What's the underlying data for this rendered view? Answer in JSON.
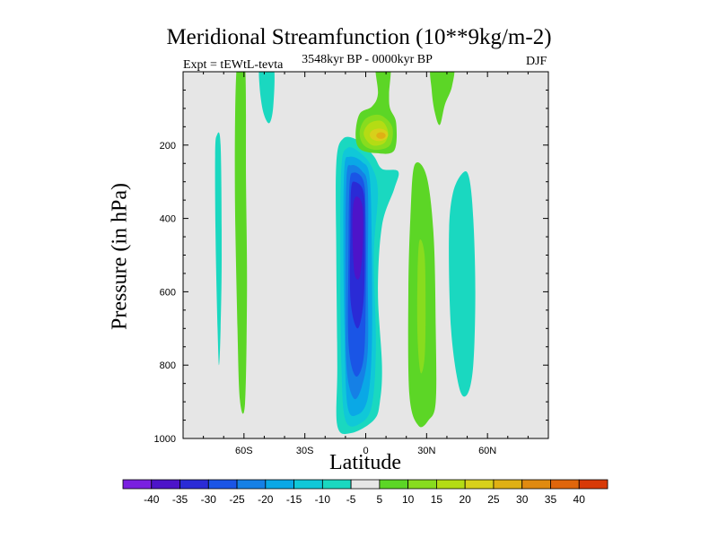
{
  "chart_data": {
    "type": "contour",
    "title": "Meridional Streamfunction (10**9kg/m-2)",
    "left_annotation": "Expt = tEWtL-tevta",
    "center_annotation": "3548kyr BP - 0000kyr BP",
    "right_annotation": "DJF",
    "xlabel": "Latitude",
    "ylabel": "Pressure (in hPa)",
    "xlim": [
      -90,
      90
    ],
    "ylim": [
      1000,
      0
    ],
    "x_ticks": [
      {
        "value": -60,
        "label": "60S"
      },
      {
        "value": -30,
        "label": "30S"
      },
      {
        "value": 0,
        "label": "0"
      },
      {
        "value": 30,
        "label": "30N"
      },
      {
        "value": 60,
        "label": "60N"
      }
    ],
    "y_ticks": [
      {
        "value": 200,
        "label": "200"
      },
      {
        "value": 400,
        "label": "400"
      },
      {
        "value": 600,
        "label": "600"
      },
      {
        "value": 800,
        "label": "800"
      },
      {
        "value": 1000,
        "label": "1000"
      }
    ],
    "background_color": "#e6e6e6",
    "colorbar": {
      "labels": [
        "-40",
        "-35",
        "-30",
        "-25",
        "-20",
        "-15",
        "-10",
        "-5",
        "5",
        "10",
        "15",
        "20",
        "25",
        "30",
        "35",
        "40"
      ],
      "colors": [
        "#7a20e0",
        "#4d14c9",
        "#2a2bd6",
        "#1a55e6",
        "#1580e6",
        "#0aa8e6",
        "#10c8d8",
        "#1ad8c0",
        "#e6e6e6",
        "#5cd626",
        "#88dc1e",
        "#b4dc14",
        "#d8d01a",
        "#e0b014",
        "#e08a10",
        "#e0660c",
        "#d83a08"
      ]
    },
    "features": [
      {
        "name": "Antarctic negative cell",
        "lat_range": [
          -74,
          -71
        ],
        "p_range": [
          180,
          800
        ],
        "value": -7
      },
      {
        "name": "Southern high-latitude positive column",
        "lat_range": [
          -64,
          -59
        ],
        "p_range": [
          0,
          905
        ],
        "value": 7
      },
      {
        "name": "Upper southern negative tongue",
        "lat_range": [
          -52,
          -45
        ],
        "p_range": [
          0,
          140
        ],
        "value": -7
      },
      {
        "name": "Tropical negative cell",
        "lat_range": [
          -14,
          8
        ],
        "p_range": [
          180,
          980
        ],
        "min_value": -38,
        "center": [
          -2,
          470
        ]
      },
      {
        "name": "Upper tropical positive cell",
        "lat_range": [
          -5,
          15
        ],
        "p_range": [
          0,
          225
        ],
        "max_value": 27,
        "center": [
          7,
          175
        ]
      },
      {
        "name": "Northern subtropical positive column",
        "lat_range": [
          22,
          35
        ],
        "p_range": [
          250,
          960
        ],
        "max_value": 13,
        "center": [
          28,
          690
        ]
      },
      {
        "name": "Upper northern positive tongue",
        "lat_range": [
          32,
          43
        ],
        "p_range": [
          0,
          145
        ],
        "value": 7
      },
      {
        "name": "Northern mid-latitude negative cell",
        "lat_range": [
          40,
          56
        ],
        "p_range": [
          280,
          880
        ],
        "value": -7
      }
    ]
  }
}
